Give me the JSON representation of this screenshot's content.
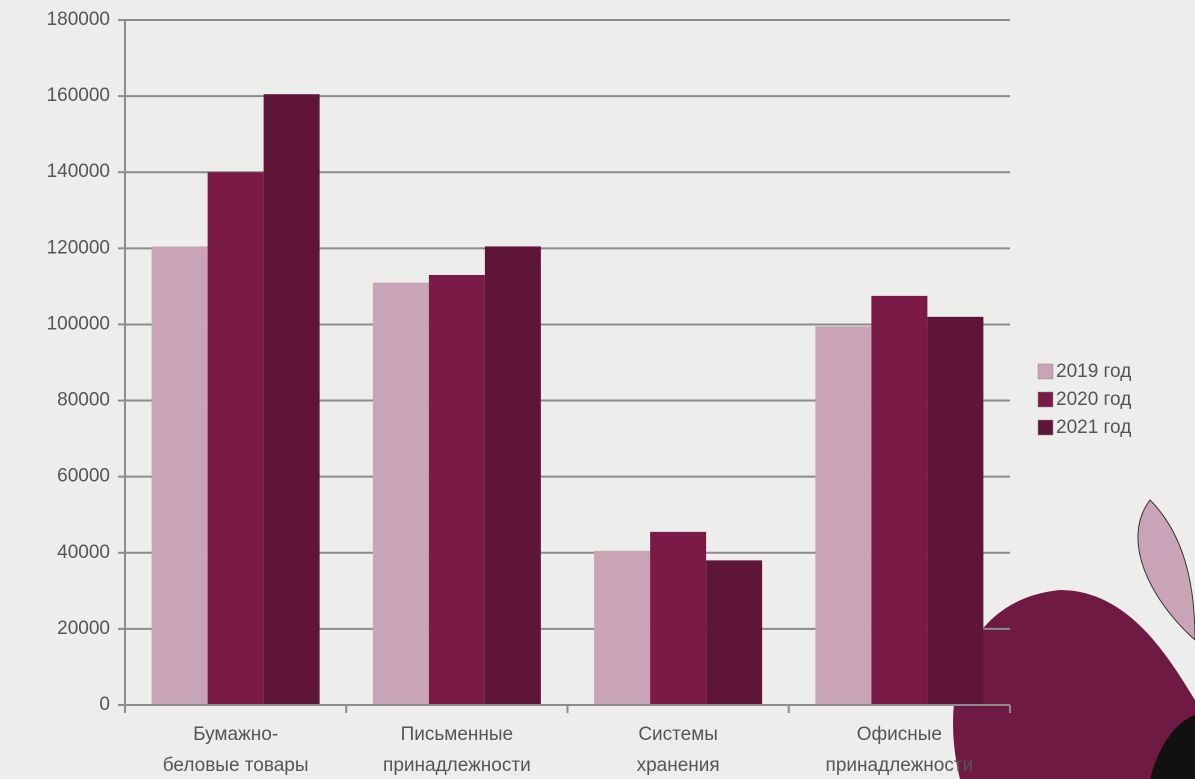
{
  "chart_data": {
    "type": "bar",
    "categories": [
      [
        "Бумажно-",
        "беловые товары"
      ],
      [
        "Письменные",
        "принадлежности"
      ],
      [
        "Системы",
        "хранения"
      ],
      [
        "Офисные",
        "принадлежности"
      ]
    ],
    "series": [
      {
        "name": "2019 год",
        "color": "#c9a3b6",
        "values": [
          120500,
          111000,
          40500,
          99500
        ]
      },
      {
        "name": "2020 год",
        "color": "#7a1a47",
        "values": [
          140000,
          113000,
          45500,
          107500
        ]
      },
      {
        "name": "2021 год",
        "color": "#5e1538",
        "values": [
          160500,
          120500,
          38000,
          102000
        ]
      }
    ],
    "ylim": [
      0,
      180000
    ],
    "yticks": [
      0,
      20000,
      40000,
      60000,
      80000,
      100000,
      120000,
      140000,
      160000,
      180000
    ],
    "grid": true,
    "legend": "right"
  }
}
